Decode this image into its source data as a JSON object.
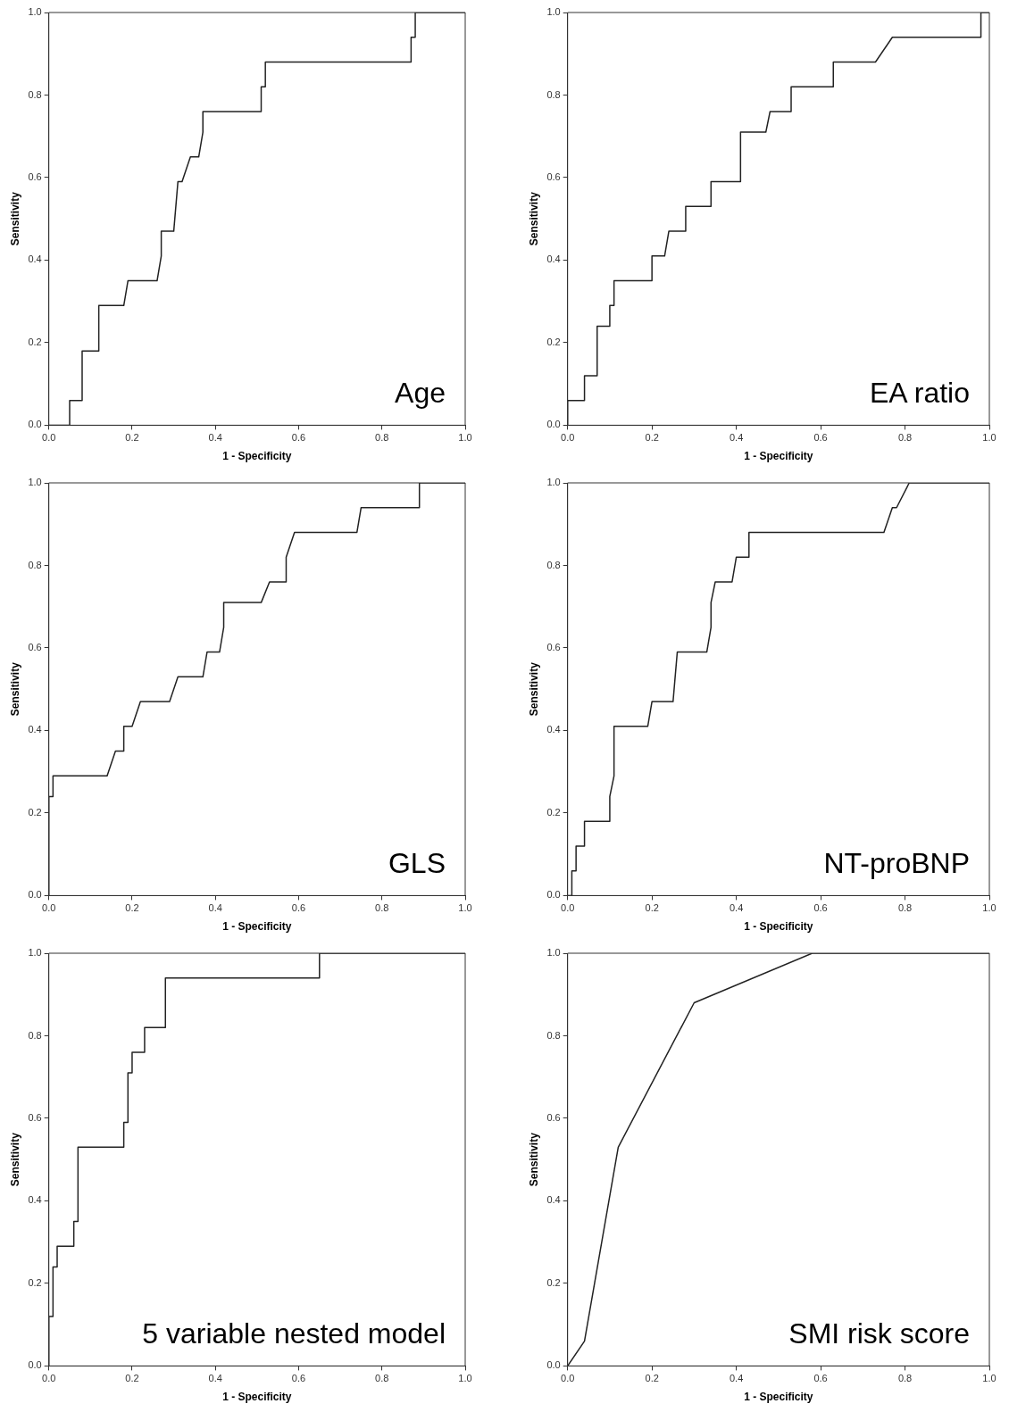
{
  "chart_data": [
    {
      "type": "line",
      "xlabel": "1 - Specificity",
      "ylabel": "Sensitivity",
      "annotations": [
        "Age"
      ],
      "xlim": [
        0,
        1
      ],
      "ylim": [
        0,
        1
      ],
      "xticks": [
        {
          "value": 0,
          "label": "0.0"
        },
        {
          "value": 0.2,
          "label": "0.2"
        },
        {
          "value": 0.4,
          "label": "0.4"
        },
        {
          "value": 0.6,
          "label": "0.6"
        },
        {
          "value": 0.8,
          "label": "0.8"
        },
        {
          "value": 1,
          "label": "1.0"
        }
      ],
      "yticks": [
        {
          "value": 0,
          "label": "0.0"
        },
        {
          "value": 0.2,
          "label": "0.2"
        },
        {
          "value": 0.4,
          "label": "0.4"
        },
        {
          "value": 0.6,
          "label": "0.6"
        },
        {
          "value": 0.8,
          "label": "0.8"
        },
        {
          "value": 1,
          "label": "1.0"
        }
      ],
      "series": [
        {
          "color": "#222222",
          "x": [
            0,
            0.05,
            0.05,
            0.08,
            0.08,
            0.12,
            0.12,
            0.18,
            0.19,
            0.26,
            0.27,
            0.27,
            0.3,
            0.31,
            0.32,
            0.34,
            0.36,
            0.37,
            0.37,
            0.51,
            0.51,
            0.52,
            0.52,
            0.87,
            0.87,
            0.88,
            0.88,
            1
          ],
          "values": [
            0,
            0,
            0.06,
            0.06,
            0.18,
            0.18,
            0.29,
            0.29,
            0.35,
            0.35,
            0.41,
            0.47,
            0.47,
            0.59,
            0.59,
            0.65,
            0.65,
            0.71,
            0.76,
            0.76,
            0.82,
            0.82,
            0.88,
            0.88,
            0.94,
            0.94,
            1,
            1
          ]
        }
      ]
    },
    {
      "type": "line",
      "xlabel": "1 - Specificity",
      "ylabel": "Sensitivity",
      "annotations": [
        "EA ratio"
      ],
      "xlim": [
        0,
        1
      ],
      "ylim": [
        0,
        1
      ],
      "xticks": [
        {
          "value": 0,
          "label": "0.0"
        },
        {
          "value": 0.2,
          "label": "0.2"
        },
        {
          "value": 0.4,
          "label": "0.4"
        },
        {
          "value": 0.6,
          "label": "0.6"
        },
        {
          "value": 0.8,
          "label": "0.8"
        },
        {
          "value": 1,
          "label": "1.0"
        }
      ],
      "yticks": [
        {
          "value": 0,
          "label": "0.0"
        },
        {
          "value": 0.2,
          "label": "0.2"
        },
        {
          "value": 0.4,
          "label": "0.4"
        },
        {
          "value": 0.6,
          "label": "0.6"
        },
        {
          "value": 0.8,
          "label": "0.8"
        },
        {
          "value": 1,
          "label": "1.0"
        }
      ],
      "series": [
        {
          "color": "#222222",
          "x": [
            0,
            0,
            0.04,
            0.04,
            0.07,
            0.07,
            0.1,
            0.1,
            0.11,
            0.11,
            0.2,
            0.2,
            0.23,
            0.24,
            0.28,
            0.28,
            0.34,
            0.34,
            0.41,
            0.41,
            0.47,
            0.48,
            0.53,
            0.53,
            0.63,
            0.63,
            0.73,
            0.77,
            0.98,
            0.98,
            1
          ],
          "values": [
            0,
            0.06,
            0.06,
            0.12,
            0.12,
            0.24,
            0.24,
            0.29,
            0.29,
            0.35,
            0.35,
            0.41,
            0.41,
            0.47,
            0.47,
            0.53,
            0.53,
            0.59,
            0.59,
            0.71,
            0.71,
            0.76,
            0.76,
            0.82,
            0.82,
            0.88,
            0.88,
            0.94,
            0.94,
            1,
            1
          ]
        }
      ]
    },
    {
      "type": "line",
      "xlabel": "1 - Specificity",
      "ylabel": "Sensitivity",
      "annotations": [
        "GLS"
      ],
      "xlim": [
        0,
        1
      ],
      "ylim": [
        0,
        1
      ],
      "xticks": [
        {
          "value": 0,
          "label": "0.0"
        },
        {
          "value": 0.2,
          "label": "0.2"
        },
        {
          "value": 0.4,
          "label": "0.4"
        },
        {
          "value": 0.6,
          "label": "0.6"
        },
        {
          "value": 0.8,
          "label": "0.8"
        },
        {
          "value": 1,
          "label": "1.0"
        }
      ],
      "yticks": [
        {
          "value": 0,
          "label": "0.0"
        },
        {
          "value": 0.2,
          "label": "0.2"
        },
        {
          "value": 0.4,
          "label": "0.4"
        },
        {
          "value": 0.6,
          "label": "0.6"
        },
        {
          "value": 0.8,
          "label": "0.8"
        },
        {
          "value": 1,
          "label": "1.0"
        }
      ],
      "series": [
        {
          "color": "#222222",
          "x": [
            0,
            0,
            0.01,
            0.01,
            0.14,
            0.16,
            0.18,
            0.18,
            0.2,
            0.22,
            0.29,
            0.31,
            0.37,
            0.38,
            0.41,
            0.42,
            0.42,
            0.51,
            0.53,
            0.57,
            0.57,
            0.59,
            0.74,
            0.75,
            0.89,
            0.89,
            1
          ],
          "values": [
            0,
            0.24,
            0.24,
            0.29,
            0.29,
            0.35,
            0.35,
            0.41,
            0.41,
            0.47,
            0.47,
            0.53,
            0.53,
            0.59,
            0.59,
            0.65,
            0.71,
            0.71,
            0.76,
            0.76,
            0.82,
            0.88,
            0.88,
            0.94,
            0.94,
            1,
            1
          ]
        }
      ]
    },
    {
      "type": "line",
      "xlabel": "1 - Specificity",
      "ylabel": "Sensitivity",
      "annotations": [
        "NT-proBNP"
      ],
      "xlim": [
        0,
        1
      ],
      "ylim": [
        0,
        1
      ],
      "xticks": [
        {
          "value": 0,
          "label": "0.0"
        },
        {
          "value": 0.2,
          "label": "0.2"
        },
        {
          "value": 0.4,
          "label": "0.4"
        },
        {
          "value": 0.6,
          "label": "0.6"
        },
        {
          "value": 0.8,
          "label": "0.8"
        },
        {
          "value": 1,
          "label": "1.0"
        }
      ],
      "yticks": [
        {
          "value": 0,
          "label": "0.0"
        },
        {
          "value": 0.2,
          "label": "0.2"
        },
        {
          "value": 0.4,
          "label": "0.4"
        },
        {
          "value": 0.6,
          "label": "0.6"
        },
        {
          "value": 0.8,
          "label": "0.8"
        },
        {
          "value": 1,
          "label": "1.0"
        }
      ],
      "series": [
        {
          "color": "#222222",
          "x": [
            0,
            0.01,
            0.01,
            0.02,
            0.02,
            0.04,
            0.04,
            0.1,
            0.1,
            0.11,
            0.11,
            0.19,
            0.2,
            0.25,
            0.26,
            0.33,
            0.34,
            0.34,
            0.35,
            0.39,
            0.4,
            0.43,
            0.43,
            0.75,
            0.77,
            0.78,
            0.81,
            1
          ],
          "values": [
            0,
            0,
            0.06,
            0.06,
            0.12,
            0.12,
            0.18,
            0.18,
            0.24,
            0.29,
            0.41,
            0.41,
            0.47,
            0.47,
            0.59,
            0.59,
            0.65,
            0.71,
            0.76,
            0.76,
            0.82,
            0.82,
            0.88,
            0.88,
            0.94,
            0.94,
            1,
            1
          ]
        }
      ]
    },
    {
      "type": "line",
      "xlabel": "1 - Specificity",
      "ylabel": "Sensitivity",
      "annotations": [
        "5 variable nested model"
      ],
      "xlim": [
        0,
        1
      ],
      "ylim": [
        0,
        1
      ],
      "xticks": [
        {
          "value": 0,
          "label": "0.0"
        },
        {
          "value": 0.2,
          "label": "0.2"
        },
        {
          "value": 0.4,
          "label": "0.4"
        },
        {
          "value": 0.6,
          "label": "0.6"
        },
        {
          "value": 0.8,
          "label": "0.8"
        },
        {
          "value": 1,
          "label": "1.0"
        }
      ],
      "yticks": [
        {
          "value": 0,
          "label": "0.0"
        },
        {
          "value": 0.2,
          "label": "0.2"
        },
        {
          "value": 0.4,
          "label": "0.4"
        },
        {
          "value": 0.6,
          "label": "0.6"
        },
        {
          "value": 0.8,
          "label": "0.8"
        },
        {
          "value": 1,
          "label": "1.0"
        }
      ],
      "series": [
        {
          "color": "#222222",
          "x": [
            0,
            0,
            0.01,
            0.01,
            0.02,
            0.02,
            0.06,
            0.06,
            0.07,
            0.07,
            0.18,
            0.18,
            0.19,
            0.19,
            0.2,
            0.2,
            0.23,
            0.23,
            0.28,
            0.28,
            0.65,
            0.65,
            1
          ],
          "values": [
            0,
            0.12,
            0.12,
            0.24,
            0.24,
            0.29,
            0.29,
            0.35,
            0.35,
            0.53,
            0.53,
            0.59,
            0.59,
            0.71,
            0.71,
            0.76,
            0.76,
            0.82,
            0.82,
            0.94,
            0.94,
            1,
            1
          ]
        }
      ]
    },
    {
      "type": "line",
      "xlabel": "1 - Specificity",
      "ylabel": "Sensitivity",
      "annotations": [
        "SMI risk score"
      ],
      "xlim": [
        0,
        1
      ],
      "ylim": [
        0,
        1
      ],
      "xticks": [
        {
          "value": 0,
          "label": "0.0"
        },
        {
          "value": 0.2,
          "label": "0.2"
        },
        {
          "value": 0.4,
          "label": "0.4"
        },
        {
          "value": 0.6,
          "label": "0.6"
        },
        {
          "value": 0.8,
          "label": "0.8"
        },
        {
          "value": 1,
          "label": "1.0"
        }
      ],
      "yticks": [
        {
          "value": 0,
          "label": "0.0"
        },
        {
          "value": 0.2,
          "label": "0.2"
        },
        {
          "value": 0.4,
          "label": "0.4"
        },
        {
          "value": 0.6,
          "label": "0.6"
        },
        {
          "value": 0.8,
          "label": "0.8"
        },
        {
          "value": 1,
          "label": "1.0"
        }
      ],
      "series": [
        {
          "color": "#222222",
          "x": [
            0,
            0.04,
            0.12,
            0.3,
            0.58,
            1
          ],
          "values": [
            0,
            0.06,
            0.53,
            0.88,
            1,
            1
          ]
        }
      ]
    }
  ]
}
